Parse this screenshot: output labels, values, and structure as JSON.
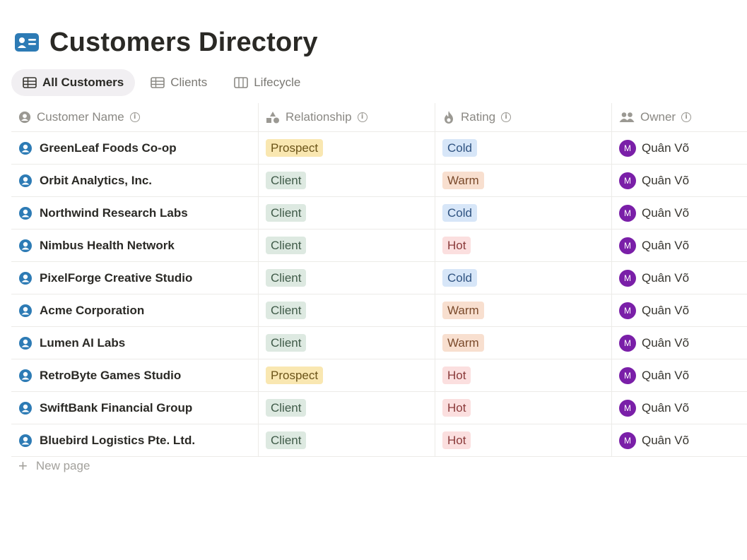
{
  "page": {
    "title": "Customers Directory",
    "title_icon": "contact-card-icon"
  },
  "tabs": [
    {
      "label": "All Customers",
      "icon": "table-icon",
      "active": true
    },
    {
      "label": "Clients",
      "icon": "table-icon",
      "active": false
    },
    {
      "label": "Lifecycle",
      "icon": "board-icon",
      "active": false
    }
  ],
  "columns": [
    {
      "label": "Customer Name",
      "icon": "person-icon"
    },
    {
      "label": "Relationship",
      "icon": "shapes-icon"
    },
    {
      "label": "Rating",
      "icon": "flame-icon"
    },
    {
      "label": "Owner",
      "icon": "people-icon"
    }
  ],
  "tag_colors": {
    "Prospect": {
      "bg": "#f9e7b1",
      "fg": "#6b5418"
    },
    "Client": {
      "bg": "#dde9e1",
      "fg": "#3f5a48"
    },
    "Cold": {
      "bg": "#d7e6f8",
      "fg": "#2e5280"
    },
    "Warm": {
      "bg": "#f8dfcf",
      "fg": "#7a4a2b"
    },
    "Hot": {
      "bg": "#fbdfdf",
      "fg": "#8a3a3a"
    }
  },
  "rows": [
    {
      "name": "GreenLeaf Foods Co-op",
      "relationship": "Prospect",
      "rating": "Cold",
      "owner": "Quân Võ",
      "owner_initial": "M"
    },
    {
      "name": "Orbit Analytics, Inc.",
      "relationship": "Client",
      "rating": "Warm",
      "owner": "Quân Võ",
      "owner_initial": "M"
    },
    {
      "name": "Northwind Research Labs",
      "relationship": "Client",
      "rating": "Cold",
      "owner": "Quân Võ",
      "owner_initial": "M"
    },
    {
      "name": "Nimbus Health Network",
      "relationship": "Client",
      "rating": "Hot",
      "owner": "Quân Võ",
      "owner_initial": "M"
    },
    {
      "name": "PixelForge Creative Studio",
      "relationship": "Client",
      "rating": "Cold",
      "owner": "Quân Võ",
      "owner_initial": "M"
    },
    {
      "name": "Acme Corporation",
      "relationship": "Client",
      "rating": "Warm",
      "owner": "Quân Võ",
      "owner_initial": "M"
    },
    {
      "name": "Lumen AI Labs",
      "relationship": "Client",
      "rating": "Warm",
      "owner": "Quân Võ",
      "owner_initial": "M"
    },
    {
      "name": "RetroByte Games Studio",
      "relationship": "Prospect",
      "rating": "Hot",
      "owner": "Quân Võ",
      "owner_initial": "M"
    },
    {
      "name": "SwiftBank Financial Group",
      "relationship": "Client",
      "rating": "Hot",
      "owner": "Quân Võ",
      "owner_initial": "M"
    },
    {
      "name": "Bluebird Logistics Pte. Ltd.",
      "relationship": "Client",
      "rating": "Hot",
      "owner": "Quân Võ",
      "owner_initial": "M"
    }
  ],
  "footer": {
    "new_page_label": "New page"
  },
  "accent_color": "#2d7bb5"
}
